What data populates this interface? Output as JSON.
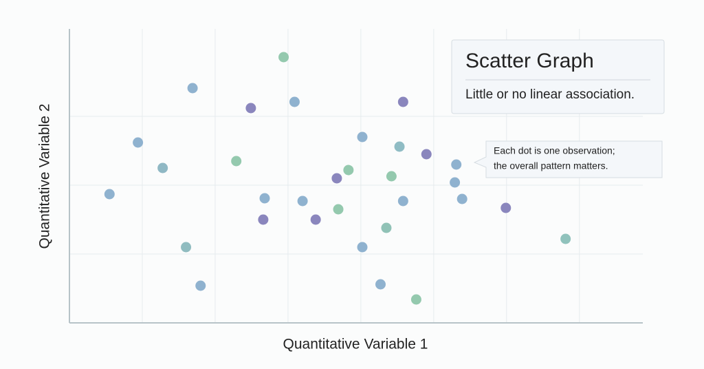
{
  "chart_data": {
    "type": "scatter",
    "title": "Scatter Graph",
    "subtitle": "Little or no linear association.",
    "annotation": [
      "Each dot is one observation;",
      "the overall pattern matters."
    ],
    "xlabel": "Quantitative Variable 1",
    "ylabel": "Quantitative Variable 2",
    "xlim": [
      0,
      7.87
    ],
    "ylim": [
      0,
      4.27
    ],
    "xticks": [
      1,
      2,
      3,
      4,
      5,
      6,
      7
    ],
    "yticks": [
      1,
      2,
      3
    ],
    "grid": true,
    "x": [
      2.94,
      1.69,
      2.49,
      3.09,
      4.58,
      0.94,
      1.28,
      2.29,
      4.02,
      4.53,
      4.9,
      5.31,
      3.83,
      3.67,
      4.42,
      5.29,
      0.55,
      2.68,
      3.2,
      4.58,
      5.39,
      3.69,
      5.99,
      2.66,
      3.38,
      4.35,
      6.81,
      1.6,
      4.02,
      1.8,
      4.27,
      4.76
    ],
    "values": [
      3.86,
      3.41,
      3.12,
      3.21,
      3.21,
      2.62,
      2.25,
      2.35,
      2.7,
      2.56,
      2.45,
      2.3,
      2.22,
      2.1,
      2.13,
      2.04,
      1.87,
      1.81,
      1.77,
      1.77,
      1.8,
      1.65,
      1.67,
      1.5,
      1.5,
      1.38,
      1.22,
      1.1,
      1.1,
      0.54,
      0.56,
      0.34
    ],
    "colors": [
      "#94c9ae",
      "#8fb2cf",
      "#8a86bd",
      "#8fb2cf",
      "#8a86bd",
      "#8fb2cf",
      "#8fb8c4",
      "#94c9ae",
      "#8fb2cf",
      "#8fbcc4",
      "#8a86bd",
      "#8fb2cf",
      "#94c9ae",
      "#8a86bd",
      "#94c9ae",
      "#8fb2cf",
      "#8fb2cf",
      "#8fb2cf",
      "#8fb2cf",
      "#8fb2cf",
      "#8fb2cf",
      "#94c9ae",
      "#8a86bd",
      "#8a86bd",
      "#8a86bd",
      "#90c2b6",
      "#90c2bc",
      "#90bcc0",
      "#8fb2cf",
      "#8fb2cf",
      "#8fb2cf",
      "#94c9ae"
    ]
  }
}
